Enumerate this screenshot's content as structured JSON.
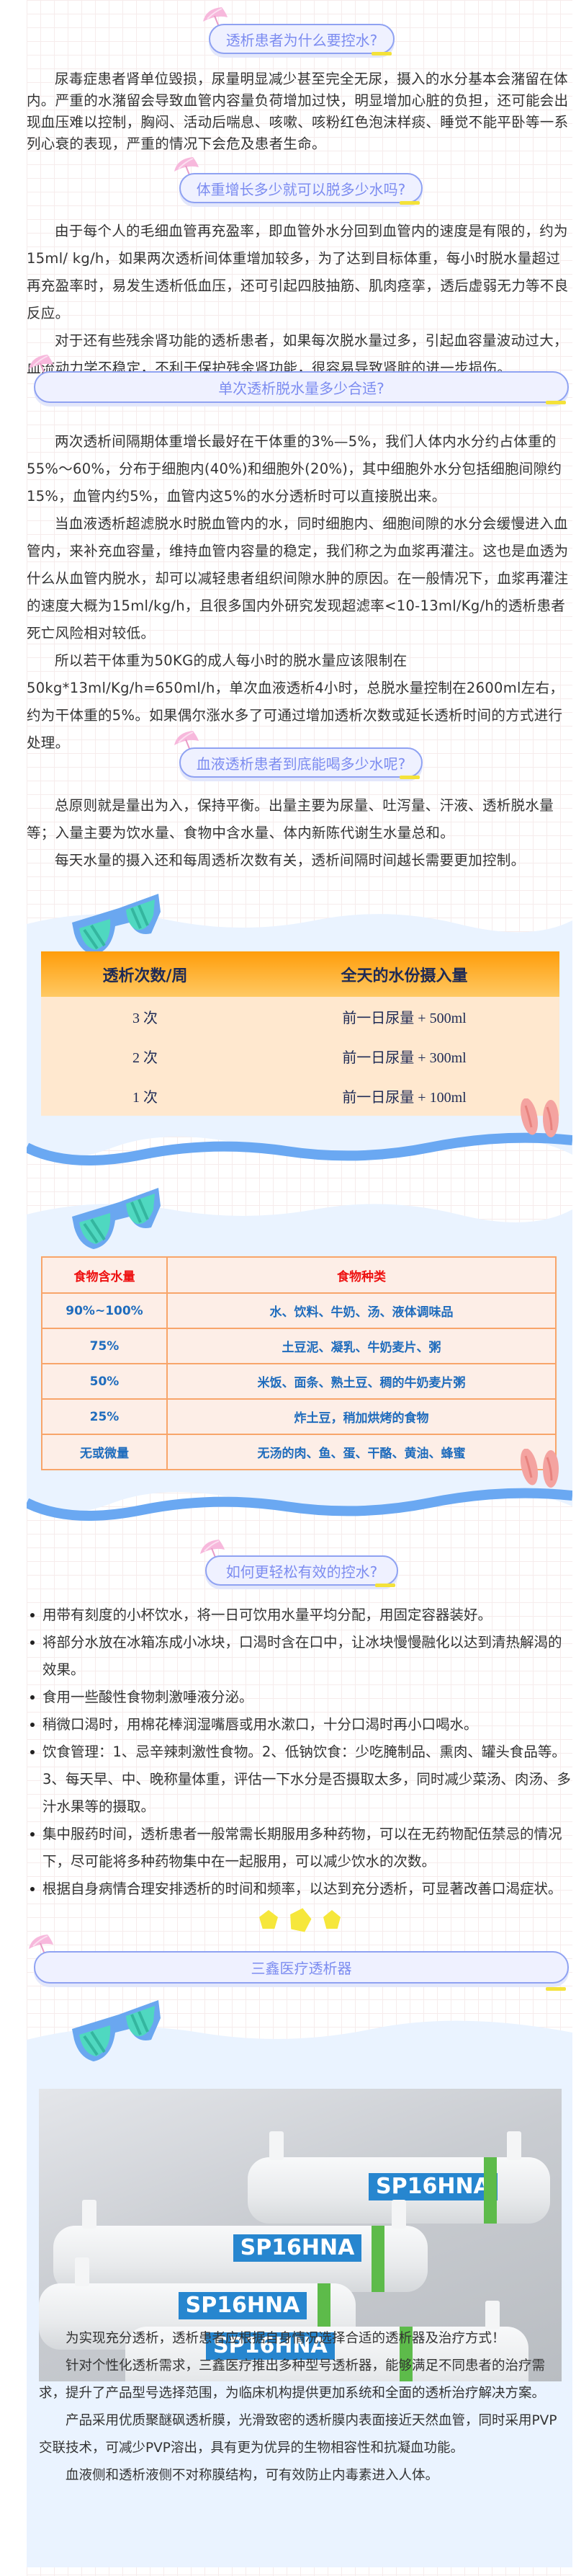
{
  "headings": {
    "h1": "透析患者为什么要控水?",
    "h2": "体重增长多少就可以脱多少水吗?",
    "h3": "单次透析脱水量多少合适?",
    "h4": "血液透析患者到底能喝多少水呢?",
    "h5": "如何更轻松有效的控水?",
    "h6": "三鑫医疗透析器"
  },
  "sections": {
    "s1": [
      "尿毒症患者肾单位毁损，尿量明显减少甚至完全无尿，摄入的水分基本会潴留在体内。严重的水潴留会导致血管内容量负荷增加过快，明显增加心脏的负担，还可能会出现血压难以控制，胸闷、活动后喘息、咳嗽、咳粉红色泡沫样痰、睡觉不能平卧等一系列心衰的表现，严重的情况下会危及患者生命。"
    ],
    "s2": [
      "由于每个人的毛细血管再充盈率，即血管外水分回到血管内的速度是有限的，约为15ml/ kg/h，如果两次透析间体重增加较多，为了达到目标体重，每小时脱水量超过再充盈率时，易发生透析低血压，还可引起四肢抽筋、肌肉痉挛，透后虚弱无力等不良反应。",
      "对于还有些残余肾功能的透析患者，如果每次脱水量过多，引起血容量波动过大，血流动力学不稳定，不利于保护残余肾功能，很容易导致肾脏的进一步损伤。"
    ],
    "s3": [
      "两次透析间隔期体重增长最好在干体重的3%—5%，我们人体内水分约占体重的55%～60%，分布于细胞内(40%)和细胞外(20%)，其中细胞外水分包括细胞间隙约15%，血管内约5%，血管内这5%的水分透析时可以直接脱出来。",
      "当血液透析超滤脱水时脱血管内的水，同时细胞内、细胞间隙的水分会缓慢进入血管内，来补充血容量，维持血管内容量的稳定，我们称之为血浆再灌注。这也是血透为什么从血管内脱水，却可以减轻患者组织间隙水肿的原因。在一般情况下，血浆再灌注的速度大概为15ml/kg/h，且很多国内外研究发现超滤率<10-13ml/Kg/h的透析患者死亡风险相对较低。",
      "所以若干体重为50KG的成人每小时的脱水量应该限制在50kg*13ml/Kg/h=650ml/h，单次血液透析4小时，总脱水量控制在2600ml左右，约为干体重的5%。如果偶尔涨水多了可通过增加透析次数或延长透析时间的方式进行处理。"
    ],
    "s4": [
      "总原则就是量出为入，保持平衡。出量主要为尿量、吐泻量、汗液、透析脱水量等；入量主要为饮水量、食物中含水量、体内新陈代谢生水量总和。",
      "每天水量的摄入还和每周透析次数有关，透析间隔时间越长需要更加控制。"
    ]
  },
  "table1": {
    "headers": [
      "透析次数/周",
      "全天的水份摄入量"
    ],
    "rows": [
      [
        "3 次",
        "前一日尿量 + 500ml"
      ],
      [
        "2 次",
        "前一日尿量 + 300ml"
      ],
      [
        "1 次",
        "前一日尿量 + 100ml"
      ]
    ]
  },
  "table2": {
    "headers": [
      "食物含水量",
      "食物种类"
    ],
    "rows": [
      [
        "90%~100%",
        "水、饮料、牛奶、汤、液体调味品"
      ],
      [
        "75%",
        "土豆泥、凝乳、牛奶麦片、粥"
      ],
      [
        "50%",
        "米饭、面条、熟土豆、稠的牛奶麦片粥"
      ],
      [
        "25%",
        "炸土豆，稍加烘烤的食物"
      ],
      [
        "无或微量",
        "无汤的肉、鱼、蛋、干酪、黄油、蜂蜜"
      ]
    ]
  },
  "tips": [
    "用带有刻度的小杯饮水，将一日可饮用水量平均分配，用固定容器装好。",
    "将部分水放在冰箱冻成小冰块，口渴时含在口中，让冰块慢慢融化以达到清热解渴的效果。",
    "食用一些酸性食物刺激唾液分泌。",
    "稍微口渴时，用棉花棒润湿嘴唇或用水漱口，十分口渴时再小口喝水。",
    "饮食管理：1、忌辛辣刺激性食物。2、低钠饮食：少吃腌制品、熏肉、罐头食品等。3、每天早、中、晚称量体重，评估一下水分是否摄取太多，同时减少菜汤、肉汤、多汁水果等的摄取。",
    "集中服药时间，透析患者一般常需长期服用多种药物，可以在无药物配伍禁忌的情况下，尽可能将多种药物集中在一起服用，可以减少饮水的次数。",
    "根据自身病情合理安排透析的时间和频率，以达到充分透析，可显著改善口渴症状。"
  ],
  "product": {
    "label": "SP16HNA",
    "paragraphs": [
      "为实现充分透析，透析患者应根据自身情况选择合适的透析器及治疗方式！",
      "针对个性化透析需求，三鑫医疗推出多种型号透析器，能够满足不同患者的治疗需求，提升了产品型号选择范围，为临床机构提供更加系统和全面的透析治疗解决方案。",
      "产品采用优质聚醚砜透析膜，光滑致密的透析膜内表面接近天然血管，同时采用PVP交联技术，可减少PVP溶出，具有更为优异的生物相容性和抗凝血功能。",
      "血液侧和透析液侧不对称膜结构，可有效防止内毒素进入人体。"
    ]
  },
  "colors": {
    "heading_text": "#7c8cf0",
    "pill_border": "#8fa2f2",
    "accent_yellow": "#f4e23a",
    "table_header_orange": "#ff9d0a",
    "table2_header_red": "#ee1111",
    "table2_text_blue": "#1f6cbd",
    "panel_bg": "#eaf3ff",
    "wave_blue": "#6aa8f2"
  },
  "icons": [
    "umbrella-icon",
    "sunglasses-icon",
    "flip-flops-icon",
    "pentagon-decoration"
  ]
}
